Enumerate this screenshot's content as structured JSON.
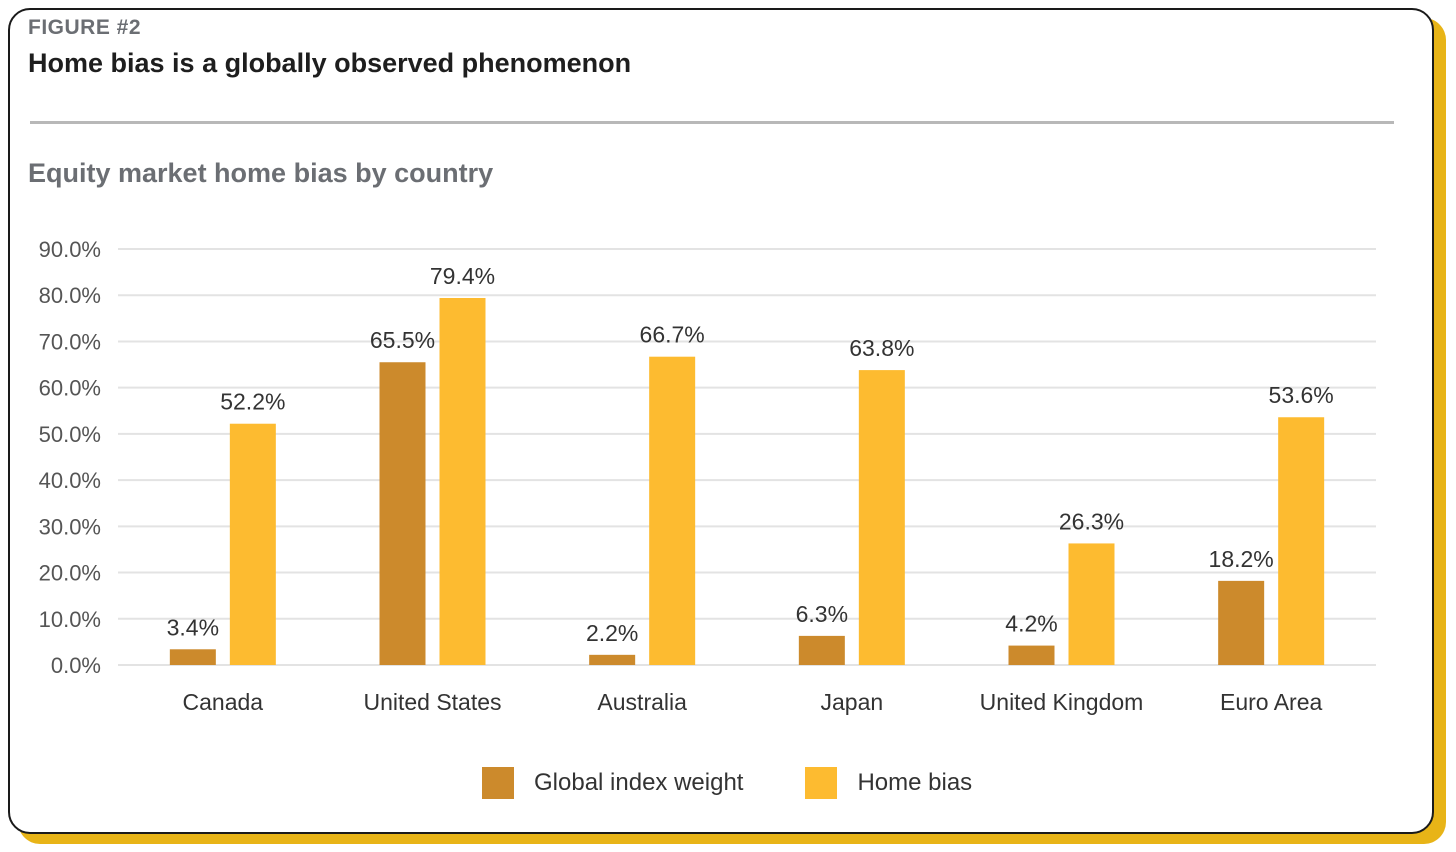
{
  "figure_label": "FIGURE #2",
  "title": "Home bias is a globally observed phenomenon",
  "subtitle": "Equity market home bias by country",
  "colors": {
    "global_index_weight": "#cc8a2c",
    "home_bias": "#fdbb30",
    "gridline": "#e3e3e3",
    "axis_text": "#555555"
  },
  "chart_data": {
    "type": "bar",
    "title": "Equity market home bias by country",
    "categories": [
      "Canada",
      "United States",
      "Australia",
      "Japan",
      "United Kingdom",
      "Euro Area"
    ],
    "series": [
      {
        "name": "Global index weight",
        "values": [
          3.4,
          65.5,
          2.2,
          6.3,
          4.2,
          18.2
        ],
        "labels": [
          "3.4%",
          "65.5%",
          "2.2%",
          "6.3%",
          "4.2%",
          "18.2%"
        ]
      },
      {
        "name": "Home bias",
        "values": [
          52.2,
          79.4,
          66.7,
          63.8,
          26.3,
          53.6
        ],
        "labels": [
          "52.2%",
          "79.4%",
          "66.7%",
          "63.8%",
          "26.3%",
          "53.6%"
        ]
      }
    ],
    "yticks": [
      "0.0%",
      "10.0%",
      "20.0%",
      "30.0%",
      "40.0%",
      "50.0%",
      "60.0%",
      "70.0%",
      "80.0%",
      "90.0%"
    ],
    "ylim": [
      0,
      90
    ],
    "grid": true,
    "legend_position": "bottom-center"
  }
}
